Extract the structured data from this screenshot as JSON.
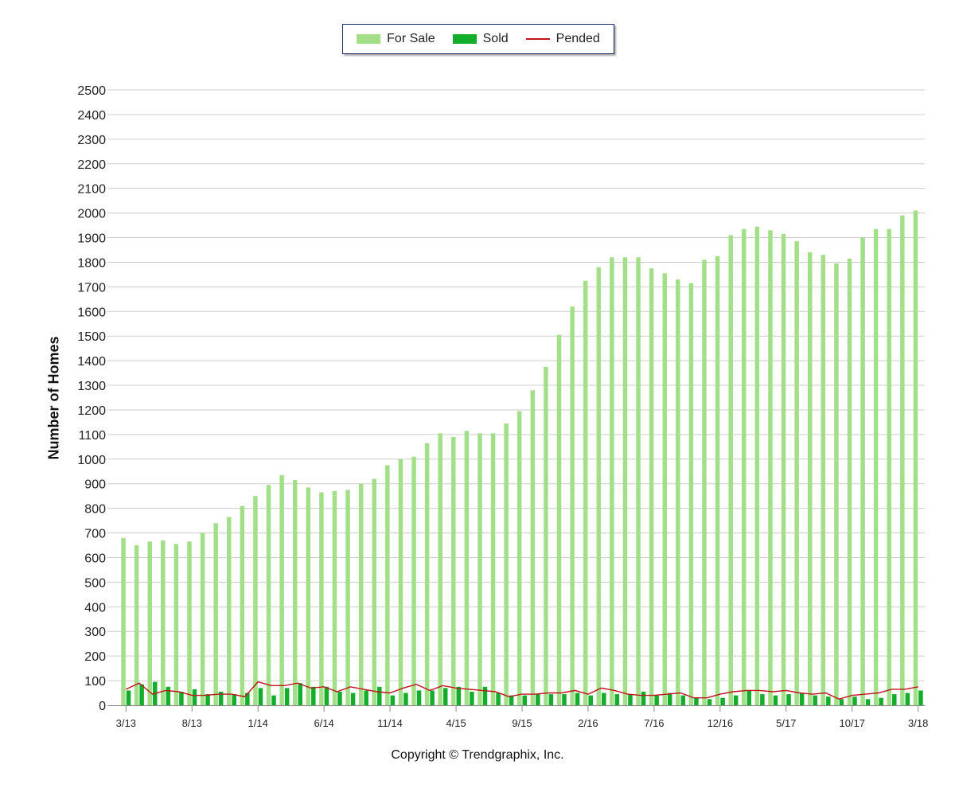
{
  "legend": {
    "for_sale": "For Sale",
    "sold": "Sold",
    "pended": "Pended"
  },
  "copyright": "Copyright © Trendgraphix, Inc.",
  "colors": {
    "for_sale": "#a3df88",
    "sold": "#12ad2b",
    "pended": "#c0131b",
    "grid": "#cccccc",
    "axis": "#888888"
  },
  "chart_data": {
    "type": "bar",
    "ylabel": "Number of Homes",
    "xlabel": "",
    "ylim": [
      0,
      2500
    ],
    "yticks": [
      0,
      100,
      200,
      300,
      400,
      500,
      600,
      700,
      800,
      900,
      1000,
      1100,
      1200,
      1300,
      1400,
      1500,
      1600,
      1700,
      1800,
      1900,
      2000,
      2100,
      2200,
      2300,
      2400,
      2500
    ],
    "grid": true,
    "legend_position": "top-center",
    "categories": [
      "3/13",
      "4/13",
      "5/13",
      "6/13",
      "7/13",
      "8/13",
      "9/13",
      "10/13",
      "11/13",
      "12/13",
      "1/14",
      "2/14",
      "3/14",
      "4/14",
      "5/14",
      "6/14",
      "7/14",
      "8/14",
      "9/14",
      "10/14",
      "11/14",
      "12/14",
      "1/15",
      "2/15",
      "3/15",
      "4/15",
      "5/15",
      "6/15",
      "7/15",
      "8/15",
      "9/15",
      "10/15",
      "11/15",
      "12/15",
      "1/16",
      "2/16",
      "3/16",
      "4/16",
      "5/16",
      "6/16",
      "7/16",
      "8/16",
      "9/16",
      "10/16",
      "11/16",
      "12/16",
      "1/17",
      "2/17",
      "3/17",
      "4/17",
      "5/17",
      "6/17",
      "7/17",
      "8/17",
      "9/17",
      "10/17",
      "11/17",
      "12/17",
      "1/18",
      "2/18",
      "3/18"
    ],
    "xtick_labels": [
      "3/13",
      "8/13",
      "1/14",
      "6/14",
      "11/14",
      "4/15",
      "9/15",
      "2/16",
      "7/16",
      "12/16",
      "5/17",
      "10/17",
      "3/18"
    ],
    "series": [
      {
        "name": "For Sale",
        "type": "bar",
        "values": [
          680,
          650,
          665,
          670,
          655,
          665,
          700,
          740,
          765,
          810,
          850,
          895,
          935,
          915,
          885,
          865,
          870,
          875,
          900,
          920,
          975,
          1000,
          1010,
          1065,
          1105,
          1090,
          1115,
          1105,
          1105,
          1145,
          1195,
          1280,
          1375,
          1505,
          1620,
          1725,
          1780,
          1820,
          1820,
          1820,
          1775,
          1755,
          1730,
          1715,
          1810,
          1825,
          1910,
          1935,
          1945,
          1930,
          1915,
          1885,
          1840,
          1830,
          1795,
          1815,
          1900,
          1935,
          1935,
          1990,
          2010
        ]
      },
      {
        "name": "Sold",
        "type": "bar",
        "values": [
          60,
          85,
          95,
          75,
          55,
          65,
          45,
          55,
          45,
          50,
          70,
          40,
          70,
          90,
          75,
          75,
          55,
          50,
          60,
          75,
          40,
          50,
          60,
          60,
          70,
          75,
          55,
          75,
          50,
          40,
          40,
          45,
          45,
          45,
          50,
          40,
          50,
          45,
          45,
          55,
          40,
          50,
          40,
          30,
          25,
          30,
          40,
          60,
          45,
          40,
          45,
          50,
          40,
          35,
          25,
          35,
          25,
          30,
          45,
          50,
          60
        ]
      },
      {
        "name": "Pended",
        "type": "line",
        "values": [
          65,
          90,
          45,
          60,
          55,
          40,
          40,
          45,
          45,
          35,
          95,
          80,
          80,
          90,
          70,
          75,
          55,
          75,
          65,
          55,
          50,
          70,
          85,
          60,
          80,
          70,
          65,
          60,
          55,
          35,
          45,
          45,
          50,
          50,
          60,
          45,
          70,
          60,
          45,
          40,
          40,
          45,
          50,
          30,
          30,
          45,
          55,
          60,
          60,
          55,
          60,
          50,
          45,
          50,
          25,
          40,
          45,
          50,
          65,
          65,
          75
        ]
      }
    ]
  }
}
